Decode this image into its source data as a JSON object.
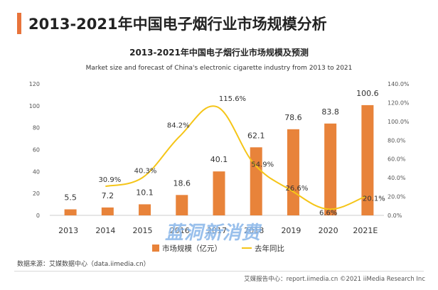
{
  "page_title": "2013-2021年中国电子烟行业市场规模分析",
  "source_note": "数据来源：艾媒数据中心（data.iimedia.cn）",
  "copyright": "艾媒报告中心：report.iimedia.cn  ©2021  iiMedia Research Inc",
  "watermark": "蓝洞新消费",
  "colors": {
    "bar": "#e8833a",
    "line": "#f5c518",
    "title_accent": "#e8743b"
  },
  "chart_data": {
    "type": "bar",
    "title": "2013-2021年中国电子烟行业市场规模及预测",
    "subtitle": "Market size and forecast of China's electronic cigarette industry from 2013 to 2021",
    "categories": [
      "2013",
      "2014",
      "2015",
      "2016",
      "2017",
      "2018",
      "2019",
      "2020",
      "2021E"
    ],
    "series": [
      {
        "name": "市场规模（亿元）",
        "type": "bar",
        "axis": "left",
        "values": [
          5.5,
          7.2,
          10.1,
          18.6,
          40.1,
          62.1,
          78.6,
          83.8,
          100.6
        ],
        "labels": [
          "5.5",
          "7.2",
          "10.1",
          "18.6",
          "40.1",
          "62.1",
          "78.6",
          "83.8",
          "100.6"
        ]
      },
      {
        "name": "去年同比",
        "type": "line",
        "axis": "right",
        "values": [
          null,
          30.9,
          40.3,
          84.2,
          115.6,
          54.9,
          26.6,
          6.6,
          20.1
        ],
        "labels": [
          null,
          "30.9%",
          "40.3%",
          "84.2%",
          "115.6%",
          "54.9%",
          "26.6%",
          "6.6%",
          "20.1%"
        ]
      }
    ],
    "y_left": {
      "ylim": [
        0,
        120
      ],
      "ticks": [
        "0",
        "20",
        "40",
        "60",
        "80",
        "100",
        "120"
      ]
    },
    "y_right": {
      "ylim": [
        0,
        140
      ],
      "ticks": [
        "0.0%",
        "20.0%",
        "40.0%",
        "60.0%",
        "80.0%",
        "100.0%",
        "120.0%",
        "140.0%"
      ]
    },
    "legend_position": "bottom",
    "grid": false
  }
}
